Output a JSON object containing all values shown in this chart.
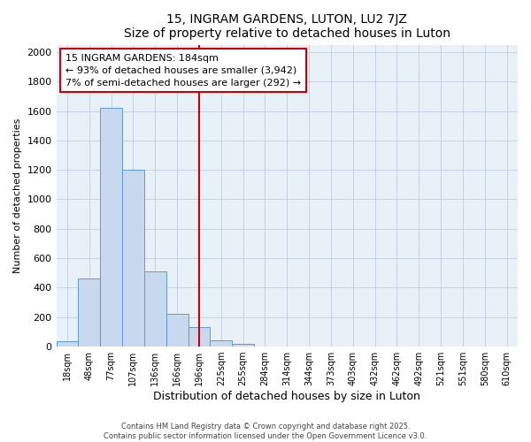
{
  "title": "15, INGRAM GARDENS, LUTON, LU2 7JZ",
  "subtitle": "Size of property relative to detached houses in Luton",
  "xlabel": "Distribution of detached houses by size in Luton",
  "ylabel": "Number of detached properties",
  "bin_labels": [
    "18sqm",
    "48sqm",
    "77sqm",
    "107sqm",
    "136sqm",
    "166sqm",
    "196sqm",
    "225sqm",
    "255sqm",
    "284sqm",
    "314sqm",
    "344sqm",
    "373sqm",
    "403sqm",
    "432sqm",
    "462sqm",
    "492sqm",
    "521sqm",
    "551sqm",
    "580sqm",
    "610sqm"
  ],
  "bar_values": [
    35,
    460,
    1620,
    1200,
    510,
    220,
    130,
    45,
    20,
    0,
    0,
    0,
    0,
    0,
    0,
    0,
    0,
    0,
    0,
    0,
    0
  ],
  "bar_color": "#c8d8ef",
  "bar_edge_color": "#5b9bd5",
  "vline_x": 6,
  "vline_color": "#cc0000",
  "ylim": [
    0,
    2050
  ],
  "yticks": [
    0,
    200,
    400,
    600,
    800,
    1000,
    1200,
    1400,
    1600,
    1800,
    2000
  ],
  "annotation_text": "15 INGRAM GARDENS: 184sqm\n← 93% of detached houses are smaller (3,942)\n7% of semi-detached houses are larger (292) →",
  "annotation_box_color": "white",
  "annotation_box_edge_color": "#cc0000",
  "footer_line1": "Contains HM Land Registry data © Crown copyright and database right 2025.",
  "footer_line2": "Contains public sector information licensed under the Open Government Licence v3.0.",
  "fig_bg_color": "white",
  "plot_bg_color": "#e8f0f8",
  "grid_color": "#c0cce0"
}
